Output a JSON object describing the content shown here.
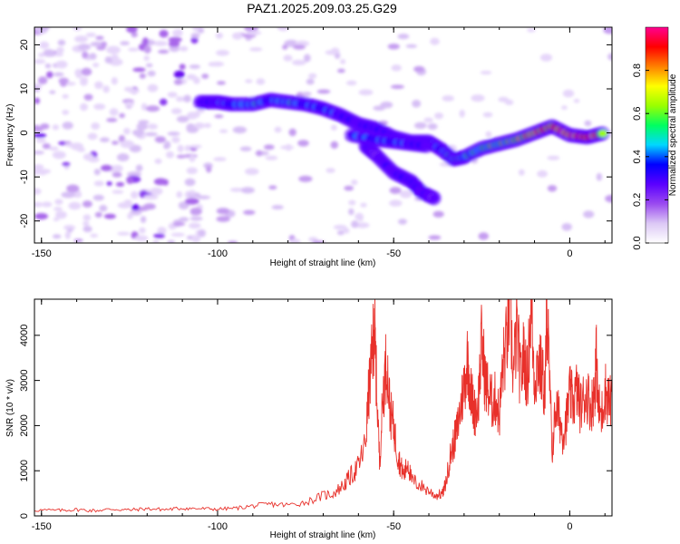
{
  "title": "PAZ1.2025.209.03.25.G29",
  "chart_data": [
    {
      "type": "heatmap",
      "xlabel": "Height of straight line (km)",
      "ylabel": "Frequency (Hz)",
      "xlim": [
        -152,
        12
      ],
      "ylim": [
        -25,
        24
      ],
      "xticks": [
        -150,
        -100,
        -50,
        0
      ],
      "yticks": [
        -20,
        -10,
        0,
        10,
        20
      ],
      "colorbar": {
        "label": "Normalized spectral amplitude",
        "range": [
          0,
          1
        ],
        "ticks": [
          "0.0",
          "0.2",
          "0.4",
          "0.6",
          "0.8"
        ],
        "tick_values": [
          0,
          0.2,
          0.4,
          0.6,
          0.8
        ],
        "colors": [
          "#ffffff",
          "#dcc8f5",
          "#9a4af0",
          "#5a00ff",
          "#0000ff",
          "#00d8ff",
          "#00ff60",
          "#9aff00",
          "#ffff00",
          "#ff8000",
          "#ff0000",
          "#ff0090"
        ]
      },
      "ridge": [
        {
          "x": -105,
          "y": 7,
          "amp": 0.3
        },
        {
          "x": -100,
          "y": 7,
          "amp": 0.35
        },
        {
          "x": -96,
          "y": 6.5,
          "amp": 0.4
        },
        {
          "x": -90,
          "y": 6.5,
          "amp": 0.45
        },
        {
          "x": -85,
          "y": 7.5,
          "amp": 0.4
        },
        {
          "x": -80,
          "y": 7,
          "amp": 0.45
        },
        {
          "x": -75,
          "y": 6.5,
          "amp": 0.4
        },
        {
          "x": -70,
          "y": 5.5,
          "amp": 0.4
        },
        {
          "x": -65,
          "y": 4,
          "amp": 0.35
        },
        {
          "x": -60,
          "y": 2,
          "amp": 0.3
        },
        {
          "x": -55,
          "y": 1,
          "amp": 0.35
        },
        {
          "x": -50,
          "y": -1,
          "amp": 0.35
        },
        {
          "x": -45,
          "y": -2,
          "amp": 0.35
        },
        {
          "x": -40,
          "y": -2,
          "amp": 0.35
        },
        {
          "x": -36,
          "y": -4,
          "amp": 0.4
        },
        {
          "x": -33,
          "y": -6,
          "amp": 0.5
        },
        {
          "x": -30,
          "y": -5.5,
          "amp": 0.45
        },
        {
          "x": -25,
          "y": -3.5,
          "amp": 0.5
        },
        {
          "x": -20,
          "y": -2.5,
          "amp": 0.55
        },
        {
          "x": -15,
          "y": -1.5,
          "amp": 0.6
        },
        {
          "x": -10,
          "y": 0,
          "amp": 0.75
        },
        {
          "x": -5,
          "y": 1.5,
          "amp": 0.8
        },
        {
          "x": 0,
          "y": -0.5,
          "amp": 0.85
        },
        {
          "x": 5,
          "y": -1,
          "amp": 0.95
        },
        {
          "x": 10,
          "y": 0,
          "amp": 0.6
        }
      ],
      "secondary_ridge": [
        {
          "x": -62,
          "y": -0.5,
          "amp": 0.35
        },
        {
          "x": -55,
          "y": -1.5,
          "amp": 0.4
        },
        {
          "x": -50,
          "y": -2,
          "amp": 0.4
        },
        {
          "x": -45,
          "y": -2.5,
          "amp": 0.35
        },
        {
          "x": -40,
          "y": -3,
          "amp": 0.3
        }
      ],
      "branch": [
        {
          "x": -58,
          "y": -3,
          "amp": 0.3
        },
        {
          "x": -55,
          "y": -5,
          "amp": 0.25
        },
        {
          "x": -50,
          "y": -9,
          "amp": 0.3
        },
        {
          "x": -45,
          "y": -11,
          "amp": 0.35
        },
        {
          "x": -42,
          "y": -13.5,
          "amp": 0.3
        },
        {
          "x": -38,
          "y": -15,
          "amp": 0.25
        }
      ]
    },
    {
      "type": "line",
      "xlabel": "Height of straight line (km)",
      "ylabel": "SNR (10 * v/v)",
      "xlim": [
        -152,
        12
      ],
      "ylim": [
        0,
        4800
      ],
      "xticks": [
        -150,
        -100,
        -50,
        0
      ],
      "yticks": [
        0,
        1000,
        2000,
        3000,
        4000
      ],
      "color": "#e8302a",
      "series": [
        {
          "x": [
            -152,
            -145,
            -140,
            -135,
            -130,
            -125,
            -120,
            -115,
            -110,
            -105,
            -100,
            -95,
            -90,
            -85,
            -80,
            -75,
            -70,
            -67,
            -64,
            -62,
            -60,
            -58,
            -57,
            -56,
            -55.5,
            -55,
            -54,
            -53,
            -52,
            -51,
            -50,
            -49,
            -48,
            -47,
            -46,
            -45,
            -43,
            -40,
            -38,
            -36,
            -35,
            -34,
            -33,
            -32,
            -31,
            -30,
            -29,
            -28,
            -27,
            -26,
            -25,
            -24,
            -23,
            -22,
            -21,
            -20,
            -19,
            -18,
            -17,
            -16,
            -15,
            -14,
            -13,
            -12,
            -11,
            -10,
            -9,
            -8,
            -7,
            -6.5,
            -6,
            -5,
            -4,
            -3,
            -2,
            -1,
            0,
            1,
            2,
            3,
            4,
            5,
            6,
            7,
            7.5,
            8,
            9,
            10,
            11,
            12
          ],
          "y": [
            130,
            120,
            140,
            115,
            150,
            130,
            160,
            140,
            170,
            160,
            150,
            170,
            220,
            260,
            240,
            300,
            450,
            500,
            700,
            900,
            1100,
            1600,
            2800,
            3600,
            4300,
            3200,
            1200,
            2700,
            3500,
            2300,
            2000,
            1400,
            1100,
            900,
            1200,
            800,
            700,
            550,
            450,
            500,
            800,
            1300,
            1600,
            1900,
            2400,
            2900,
            3500,
            2700,
            2300,
            2500,
            3900,
            3000,
            2700,
            2500,
            2600,
            2200,
            3300,
            3800,
            4700,
            3100,
            4200,
            3000,
            3600,
            3000,
            4700,
            3000,
            3400,
            3200,
            2700,
            4700,
            3600,
            1400,
            2400,
            2200,
            1800,
            2100,
            2700,
            2500,
            2800,
            2400,
            2600,
            2700,
            2400,
            2700,
            3600,
            2500,
            2200,
            2800,
            2600,
            2500
          ]
        }
      ]
    }
  ]
}
